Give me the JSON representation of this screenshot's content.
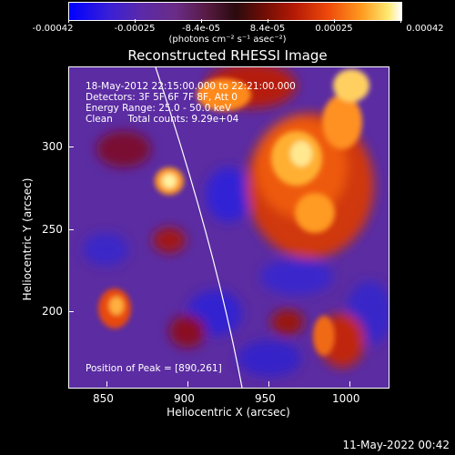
{
  "colorbar": {
    "labels": [
      "-0.00042",
      "-0.00025",
      "-8.4e-05",
      "8.4e-05",
      "0.00025",
      "0.00042"
    ],
    "units": "(photons cm⁻² s⁻¹ asec⁻²)"
  },
  "title": "Reconstructed RHESSI Image",
  "annotations": {
    "line1": "18-May-2012 22:15:00.000 to 22:21:00.000",
    "line2": "Detectors: 3F 5F 6F 7F 8F, Att 0",
    "line3": "Energy Range: 25.0 - 50.0 keV",
    "line4": "Clean     Total counts: 9.29e+04",
    "peak": "Position of Peak = [890,261]"
  },
  "axes": {
    "xlabel": "Heliocentric X (arcsec)",
    "ylabel": "Heliocentric Y (arcsec)",
    "xticks": [
      "850",
      "900",
      "950",
      "1000"
    ],
    "yticks": [
      "200",
      "250",
      "300"
    ]
  },
  "timestamp": "11-May-2022 00:42"
}
